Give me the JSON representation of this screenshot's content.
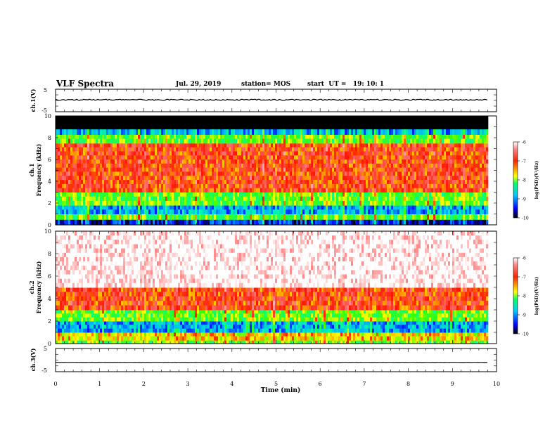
{
  "header": {
    "title": "VLF Spectra",
    "date": "Jul. 29, 2019",
    "station": "station= MOS",
    "start_ut": "start  UT =   19: 10: 1"
  },
  "panels": {
    "ch1_wave": {
      "label": "ch.1(V)",
      "ticks": [
        "5",
        "-5"
      ]
    },
    "ch1_spec": {
      "label": "ch.1",
      "ylabel": "Frequency (kHz)",
      "ticks": [
        "10",
        "8",
        "6",
        "4",
        "2",
        "0"
      ]
    },
    "ch2_spec": {
      "label": "ch.2",
      "ylabel": "Frequency (kHz)",
      "ticks": [
        "10",
        "8",
        "6",
        "4",
        "2",
        "0"
      ]
    },
    "ch3_wave": {
      "label": "ch.3(V)",
      "ticks": [
        "5",
        "-5"
      ]
    }
  },
  "xaxis": {
    "label": "Time (min)",
    "ticks": [
      "0",
      "1",
      "2",
      "3",
      "4",
      "5",
      "6",
      "7",
      "8",
      "9",
      "10"
    ]
  },
  "colorbar": {
    "label": "log(PSD)(V²/Hz)",
    "ticks": [
      "-6",
      "-7",
      "-8",
      "-9",
      "-10"
    ],
    "colors": [
      "#000080",
      "#0000ff",
      "#00c8ff",
      "#00ff64",
      "#ffff00",
      "#ff3300",
      "#ff0000",
      "#ffffff"
    ]
  },
  "chart_data": [
    {
      "type": "line",
      "title": "ch.1(V)",
      "xlabel": "Time (min)",
      "ylabel": "ch.1(V)",
      "xlim": [
        0,
        10
      ],
      "ylim": [
        -5,
        5
      ],
      "series": [
        {
          "x": [
            0,
            9.8
          ],
          "y": [
            0.3,
            0.3
          ]
        }
      ]
    },
    {
      "type": "heatmap",
      "title": "ch.1",
      "xlabel": "Time (min)",
      "ylabel": "Frequency (kHz)",
      "xlim": [
        0,
        10
      ],
      "ylim": [
        0,
        10
      ],
      "data_extent_min": 9.8,
      "bands_khz": [
        {
          "from": 0,
          "to": 0.5,
          "level": -9.5
        },
        {
          "from": 0.5,
          "to": 1.0,
          "level": -8
        },
        {
          "from": 1.0,
          "to": 1.8,
          "level": -9
        },
        {
          "from": 1.8,
          "to": 3.0,
          "level": -8
        },
        {
          "from": 3.0,
          "to": 7.5,
          "level": -7
        },
        {
          "from": 7.5,
          "to": 8.3,
          "level": -8
        },
        {
          "from": 8.3,
          "to": 8.8,
          "level": -9
        },
        {
          "from": 8.8,
          "to": 10.0,
          "level": -10
        }
      ],
      "colorbar_range": [
        -10,
        -6
      ]
    },
    {
      "type": "heatmap",
      "title": "ch.2",
      "xlabel": "Time (min)",
      "ylabel": "Frequency (kHz)",
      "xlim": [
        0,
        10
      ],
      "ylim": [
        0,
        10
      ],
      "data_extent_min": 9.8,
      "bands_khz": [
        {
          "from": 0,
          "to": 0.3,
          "level": -8
        },
        {
          "from": 0.3,
          "to": 1.0,
          "level": -7.5
        },
        {
          "from": 1.0,
          "to": 2.0,
          "level": -9
        },
        {
          "from": 2.0,
          "to": 3.0,
          "level": -8
        },
        {
          "from": 3.0,
          "to": 5.0,
          "level": -7
        },
        {
          "from": 5.0,
          "to": 10.0,
          "level": -6
        }
      ],
      "colorbar_range": [
        -10,
        -6
      ]
    },
    {
      "type": "line",
      "title": "ch.3(V)",
      "xlabel": "Time (min)",
      "ylabel": "ch.3(V)",
      "xlim": [
        0,
        10
      ],
      "ylim": [
        -5,
        5
      ],
      "series": [
        {
          "x": [
            0,
            9.8
          ],
          "y": [
            -1.0,
            -1.0
          ]
        }
      ]
    }
  ]
}
